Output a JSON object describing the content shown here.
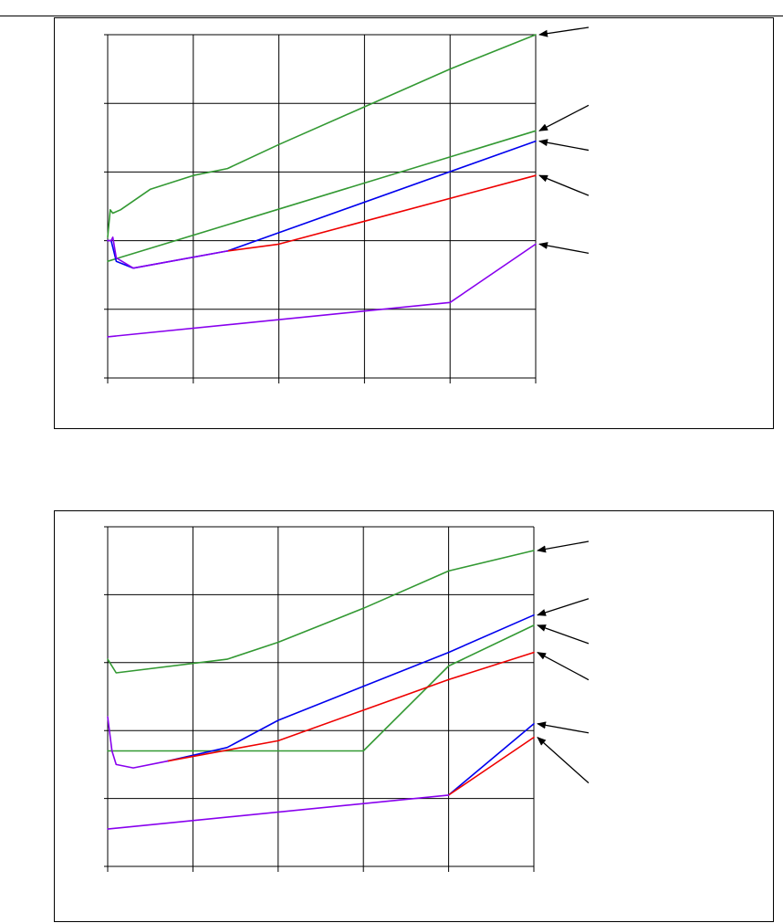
{
  "page": {
    "background": "#ffffff",
    "rule_color": "#000000"
  },
  "chart_data": [
    {
      "type": "line",
      "title": "",
      "xlabel": "",
      "ylabel": "",
      "x_ticks": 6,
      "y_ticks": 6,
      "grid": true,
      "xlim": [
        0,
        5
      ],
      "ylim": [
        0,
        5
      ],
      "series": [
        {
          "color": "#339933",
          "points": [
            [
              0,
              2.05
            ],
            [
              0.03,
              2.45
            ],
            [
              0.06,
              2.4
            ],
            [
              0.15,
              2.45
            ],
            [
              0.5,
              2.75
            ],
            [
              1,
              2.95
            ],
            [
              1.4,
              3.05
            ],
            [
              2,
              3.4
            ],
            [
              3,
              3.95
            ],
            [
              4,
              4.5
            ],
            [
              5,
              5.0
            ]
          ]
        },
        {
          "color": "#339933",
          "points": [
            [
              0,
              1.7
            ],
            [
              5,
              3.6
            ]
          ]
        },
        {
          "color": "#0000ee",
          "points": [
            [
              0,
              2.0
            ],
            [
              0.04,
              2.0
            ],
            [
              0.1,
              1.7
            ],
            [
              0.3,
              1.6
            ],
            [
              1.4,
              1.85
            ],
            [
              5,
              3.45
            ]
          ]
        },
        {
          "color": "#ee0000",
          "points": [
            [
              1.4,
              1.85
            ],
            [
              2,
              1.95
            ],
            [
              5,
              2.95
            ]
          ]
        },
        {
          "color": "#8800ee",
          "points": [
            [
              0,
              2.0
            ],
            [
              0.04,
              2.0
            ],
            [
              0.06,
              2.05
            ],
            [
              0.1,
              1.75
            ],
            [
              0.3,
              1.6
            ],
            [
              1.4,
              1.85
            ]
          ]
        },
        {
          "color": "#8800ee",
          "points": [
            [
              0,
              0.6
            ],
            [
              4,
              1.1
            ],
            [
              5,
              1.95
            ]
          ]
        }
      ],
      "annotations": [
        {
          "arrow_tip": [
            5.0,
            5.0
          ]
        },
        {
          "arrow_tip": [
            5.0,
            3.6
          ]
        },
        {
          "arrow_tip": [
            5.0,
            3.45
          ]
        },
        {
          "arrow_tip": [
            5.0,
            2.95
          ]
        },
        {
          "arrow_tip": [
            5.0,
            1.95
          ]
        }
      ]
    },
    {
      "type": "line",
      "title": "",
      "xlabel": "",
      "ylabel": "",
      "x_ticks": 6,
      "y_ticks": 6,
      "grid": true,
      "xlim": [
        0,
        5
      ],
      "ylim": [
        0,
        5
      ],
      "series": [
        {
          "color": "#339933",
          "points": [
            [
              0,
              3.05
            ],
            [
              0.1,
              2.85
            ],
            [
              1.4,
              3.05
            ],
            [
              2,
              3.3
            ],
            [
              3,
              3.8
            ],
            [
              4,
              4.35
            ],
            [
              5,
              4.65
            ]
          ]
        },
        {
          "color": "#339933",
          "points": [
            [
              0,
              1.7
            ],
            [
              1.4,
              1.7
            ],
            [
              3,
              1.7
            ],
            [
              4,
              2.95
            ],
            [
              5,
              3.55
            ]
          ]
        },
        {
          "color": "#0000ee",
          "points": [
            [
              0.7,
              1.55
            ],
            [
              1.4,
              1.75
            ],
            [
              2,
              2.15
            ],
            [
              3,
              2.65
            ],
            [
              4,
              3.15
            ],
            [
              5,
              3.7
            ]
          ]
        },
        {
          "color": "#ee0000",
          "points": [
            [
              0.7,
              1.55
            ],
            [
              2,
              1.85
            ],
            [
              3,
              2.3
            ],
            [
              4,
              2.75
            ],
            [
              5,
              3.15
            ]
          ]
        },
        {
          "color": "#8800ee",
          "points": [
            [
              0,
              2.2
            ],
            [
              0.05,
              1.7
            ],
            [
              0.1,
              1.5
            ],
            [
              0.3,
              1.45
            ],
            [
              0.7,
              1.55
            ]
          ]
        },
        {
          "color": "#0000ee",
          "points": [
            [
              4,
              1.05
            ],
            [
              5,
              2.1
            ]
          ]
        },
        {
          "color": "#ee0000",
          "points": [
            [
              4,
              1.05
            ],
            [
              5,
              1.9
            ]
          ]
        },
        {
          "color": "#8800ee",
          "points": [
            [
              0,
              0.55
            ],
            [
              4,
              1.05
            ]
          ]
        }
      ],
      "annotations": [
        {
          "arrow_tip": [
            5.0,
            4.65
          ]
        },
        {
          "arrow_tip": [
            5.0,
            3.7
          ]
        },
        {
          "arrow_tip": [
            5.0,
            3.55
          ]
        },
        {
          "arrow_tip": [
            5.0,
            3.15
          ]
        },
        {
          "arrow_tip": [
            5.0,
            2.1
          ]
        },
        {
          "arrow_tip": [
            5.0,
            1.9
          ]
        }
      ]
    }
  ]
}
